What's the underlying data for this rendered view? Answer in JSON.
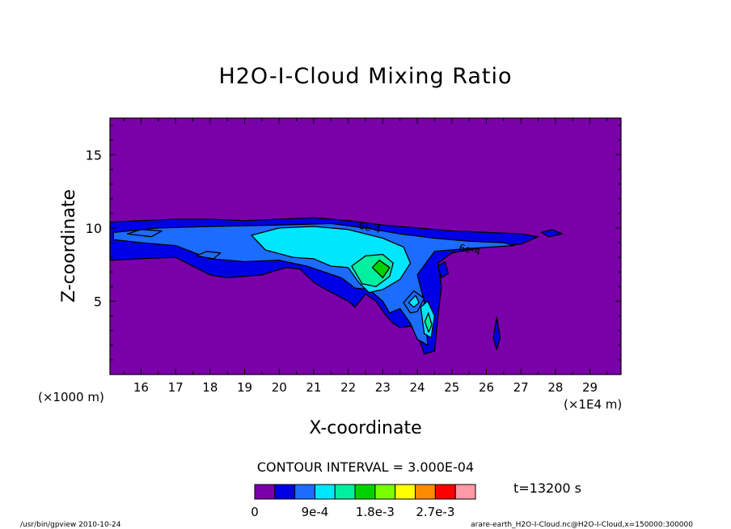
{
  "chart_data": {
    "type": "heatmap",
    "title": "H2O-I-Cloud Mixing Ratio",
    "xlabel": "X-coordinate",
    "ylabel": "Z-coordinate",
    "x_unit_left": "(×1000 m)",
    "x_unit_right": "(×1E4 m)",
    "xlim": [
      15.1,
      29.9
    ],
    "ylim": [
      0,
      17.5
    ],
    "x_ticks": [
      "16",
      "17",
      "18",
      "19",
      "20",
      "21",
      "22",
      "23",
      "24",
      "25",
      "26",
      "27",
      "28",
      "29"
    ],
    "y_ticks": [
      "5",
      "10",
      "15"
    ],
    "contour_interval_text": "CONTOUR INTERVAL = 3.000E-04",
    "time_text": "t=13200 s",
    "background_color": "#7a00aa",
    "contour_annotations": [
      {
        "text": "6e-4",
        "x": 22.6,
        "y": 9.8
      },
      {
        "text": "6e-4",
        "x": 25.5,
        "y": 8.3
      }
    ],
    "colorbar": {
      "colors": [
        "#7a00aa",
        "#0000e6",
        "#1c6cff",
        "#00e6ff",
        "#00f0a0",
        "#00d200",
        "#78ff00",
        "#ffff00",
        "#ff8c00",
        "#ff0000",
        "#ff9aa6"
      ],
      "labels": [
        {
          "text": "0",
          "boundary": 0
        },
        {
          "text": "9e-4",
          "boundary": 3
        },
        {
          "text": "1.8e-3",
          "boundary": 6
        },
        {
          "text": "2.7e-3",
          "boundary": 9
        }
      ]
    },
    "fields": [
      {
        "level": 1,
        "points": [
          [
            15.1,
            10.4
          ],
          [
            16.0,
            10.5
          ],
          [
            17.0,
            10.6
          ],
          [
            18.0,
            10.6
          ],
          [
            19.0,
            10.5
          ],
          [
            20.0,
            10.6
          ],
          [
            21.0,
            10.7
          ],
          [
            22.0,
            10.5
          ],
          [
            23.0,
            10.2
          ],
          [
            24.0,
            10.0
          ],
          [
            25.0,
            9.8
          ],
          [
            26.0,
            9.7
          ],
          [
            27.0,
            9.6
          ],
          [
            27.5,
            9.4
          ],
          [
            27.0,
            8.9
          ],
          [
            26.0,
            8.7
          ],
          [
            25.0,
            8.3
          ],
          [
            24.6,
            7.6
          ],
          [
            24.7,
            6.0
          ],
          [
            24.6,
            4.0
          ],
          [
            24.5,
            1.6
          ],
          [
            24.2,
            1.4
          ],
          [
            24.0,
            2.8
          ],
          [
            23.8,
            3.3
          ],
          [
            23.5,
            3.2
          ],
          [
            23.3,
            3.5
          ],
          [
            23.1,
            4.0
          ],
          [
            22.8,
            5.0
          ],
          [
            22.5,
            5.5
          ],
          [
            22.2,
            4.6
          ],
          [
            22.0,
            5.0
          ],
          [
            21.6,
            5.5
          ],
          [
            21.2,
            6.0
          ],
          [
            21.0,
            6.3
          ],
          [
            20.6,
            7.2
          ],
          [
            20.2,
            7.3
          ],
          [
            19.5,
            6.8
          ],
          [
            18.5,
            6.6
          ],
          [
            18.0,
            6.8
          ],
          [
            17.5,
            7.4
          ],
          [
            17.0,
            8.0
          ],
          [
            16.0,
            7.9
          ],
          [
            15.1,
            7.8
          ]
        ]
      },
      {
        "level": 2,
        "points": [
          [
            15.2,
            9.7
          ],
          [
            16.5,
            10.0
          ],
          [
            18.0,
            10.1
          ],
          [
            20.0,
            10.2
          ],
          [
            21.5,
            10.3
          ],
          [
            22.5,
            10.0
          ],
          [
            23.5,
            9.6
          ],
          [
            24.5,
            9.3
          ],
          [
            25.5,
            9.1
          ],
          [
            26.5,
            9.0
          ],
          [
            26.8,
            8.8
          ],
          [
            25.5,
            8.6
          ],
          [
            24.5,
            8.4
          ],
          [
            24.0,
            6.8
          ],
          [
            24.2,
            5.0
          ],
          [
            24.3,
            2.0
          ],
          [
            24.0,
            2.4
          ],
          [
            23.8,
            3.5
          ],
          [
            23.5,
            4.5
          ],
          [
            23.2,
            4.2
          ],
          [
            23.0,
            5.0
          ],
          [
            22.6,
            5.8
          ],
          [
            22.2,
            5.9
          ],
          [
            21.8,
            6.6
          ],
          [
            21.3,
            7.0
          ],
          [
            20.8,
            7.4
          ],
          [
            20.0,
            7.8
          ],
          [
            19.0,
            7.7
          ],
          [
            18.0,
            7.9
          ],
          [
            17.0,
            8.8
          ],
          [
            16.0,
            9.0
          ],
          [
            15.2,
            9.2
          ]
        ]
      },
      {
        "level": 3,
        "points": [
          [
            19.2,
            9.5
          ],
          [
            20.0,
            10.0
          ],
          [
            21.0,
            10.1
          ],
          [
            22.0,
            9.9
          ],
          [
            23.0,
            9.3
          ],
          [
            23.6,
            8.7
          ],
          [
            23.8,
            7.6
          ],
          [
            23.5,
            6.5
          ],
          [
            23.0,
            5.8
          ],
          [
            22.6,
            5.6
          ],
          [
            22.3,
            6.3
          ],
          [
            22.0,
            7.3
          ],
          [
            21.5,
            7.4
          ],
          [
            21.0,
            7.9
          ],
          [
            20.4,
            8.0
          ],
          [
            19.6,
            8.5
          ]
        ]
      },
      {
        "level": 4,
        "points": [
          [
            22.1,
            7.4
          ],
          [
            22.5,
            8.1
          ],
          [
            23.0,
            8.2
          ],
          [
            23.3,
            7.6
          ],
          [
            23.2,
            6.7
          ],
          [
            22.8,
            6.0
          ],
          [
            22.4,
            6.2
          ]
        ]
      },
      {
        "level": 5,
        "points": [
          [
            22.7,
            7.3
          ],
          [
            22.9,
            7.8
          ],
          [
            23.2,
            7.3
          ],
          [
            23.0,
            6.6
          ]
        ]
      },
      {
        "level": 3,
        "points": [
          [
            24.1,
            4.6
          ],
          [
            24.3,
            5.0
          ],
          [
            24.5,
            4.0
          ],
          [
            24.4,
            2.5
          ],
          [
            24.2,
            2.8
          ]
        ]
      },
      {
        "level": 4,
        "points": [
          [
            24.22,
            3.6
          ],
          [
            24.32,
            4.2
          ],
          [
            24.42,
            3.4
          ],
          [
            24.33,
            2.9
          ]
        ]
      },
      {
        "level": 2,
        "points": [
          [
            23.6,
            4.9
          ],
          [
            23.9,
            5.7
          ],
          [
            24.2,
            5.2
          ],
          [
            24.0,
            4.3
          ],
          [
            23.8,
            4.2
          ]
        ]
      },
      {
        "level": 3,
        "points": [
          [
            23.75,
            4.9
          ],
          [
            23.95,
            5.4
          ],
          [
            24.05,
            4.9
          ],
          [
            23.9,
            4.6
          ]
        ]
      },
      {
        "level": 1,
        "points": [
          [
            26.2,
            2.5
          ],
          [
            26.3,
            3.9
          ],
          [
            26.4,
            2.5
          ],
          [
            26.3,
            1.7
          ]
        ]
      },
      {
        "level": 2,
        "points": [
          [
            15.6,
            9.6
          ],
          [
            16.0,
            9.9
          ],
          [
            16.6,
            9.8
          ],
          [
            16.3,
            9.4
          ]
        ]
      },
      {
        "level": 2,
        "points": [
          [
            17.6,
            8.1
          ],
          [
            17.9,
            8.4
          ],
          [
            18.3,
            8.3
          ],
          [
            18.1,
            7.9
          ]
        ]
      },
      {
        "level": 1,
        "points": [
          [
            27.6,
            9.7
          ],
          [
            27.9,
            9.9
          ],
          [
            28.2,
            9.6
          ],
          [
            27.8,
            9.4
          ]
        ]
      },
      {
        "level": 1,
        "points": [
          [
            24.6,
            7.4
          ],
          [
            24.8,
            7.7
          ],
          [
            24.9,
            6.9
          ],
          [
            24.7,
            6.6
          ]
        ]
      }
    ]
  },
  "footer": {
    "left": "/usr/bin/gpview  2010-10-24",
    "right": "arare-earth_H2O-I-Cloud.nc@H2O-I-Cloud,x=150000:300000"
  }
}
